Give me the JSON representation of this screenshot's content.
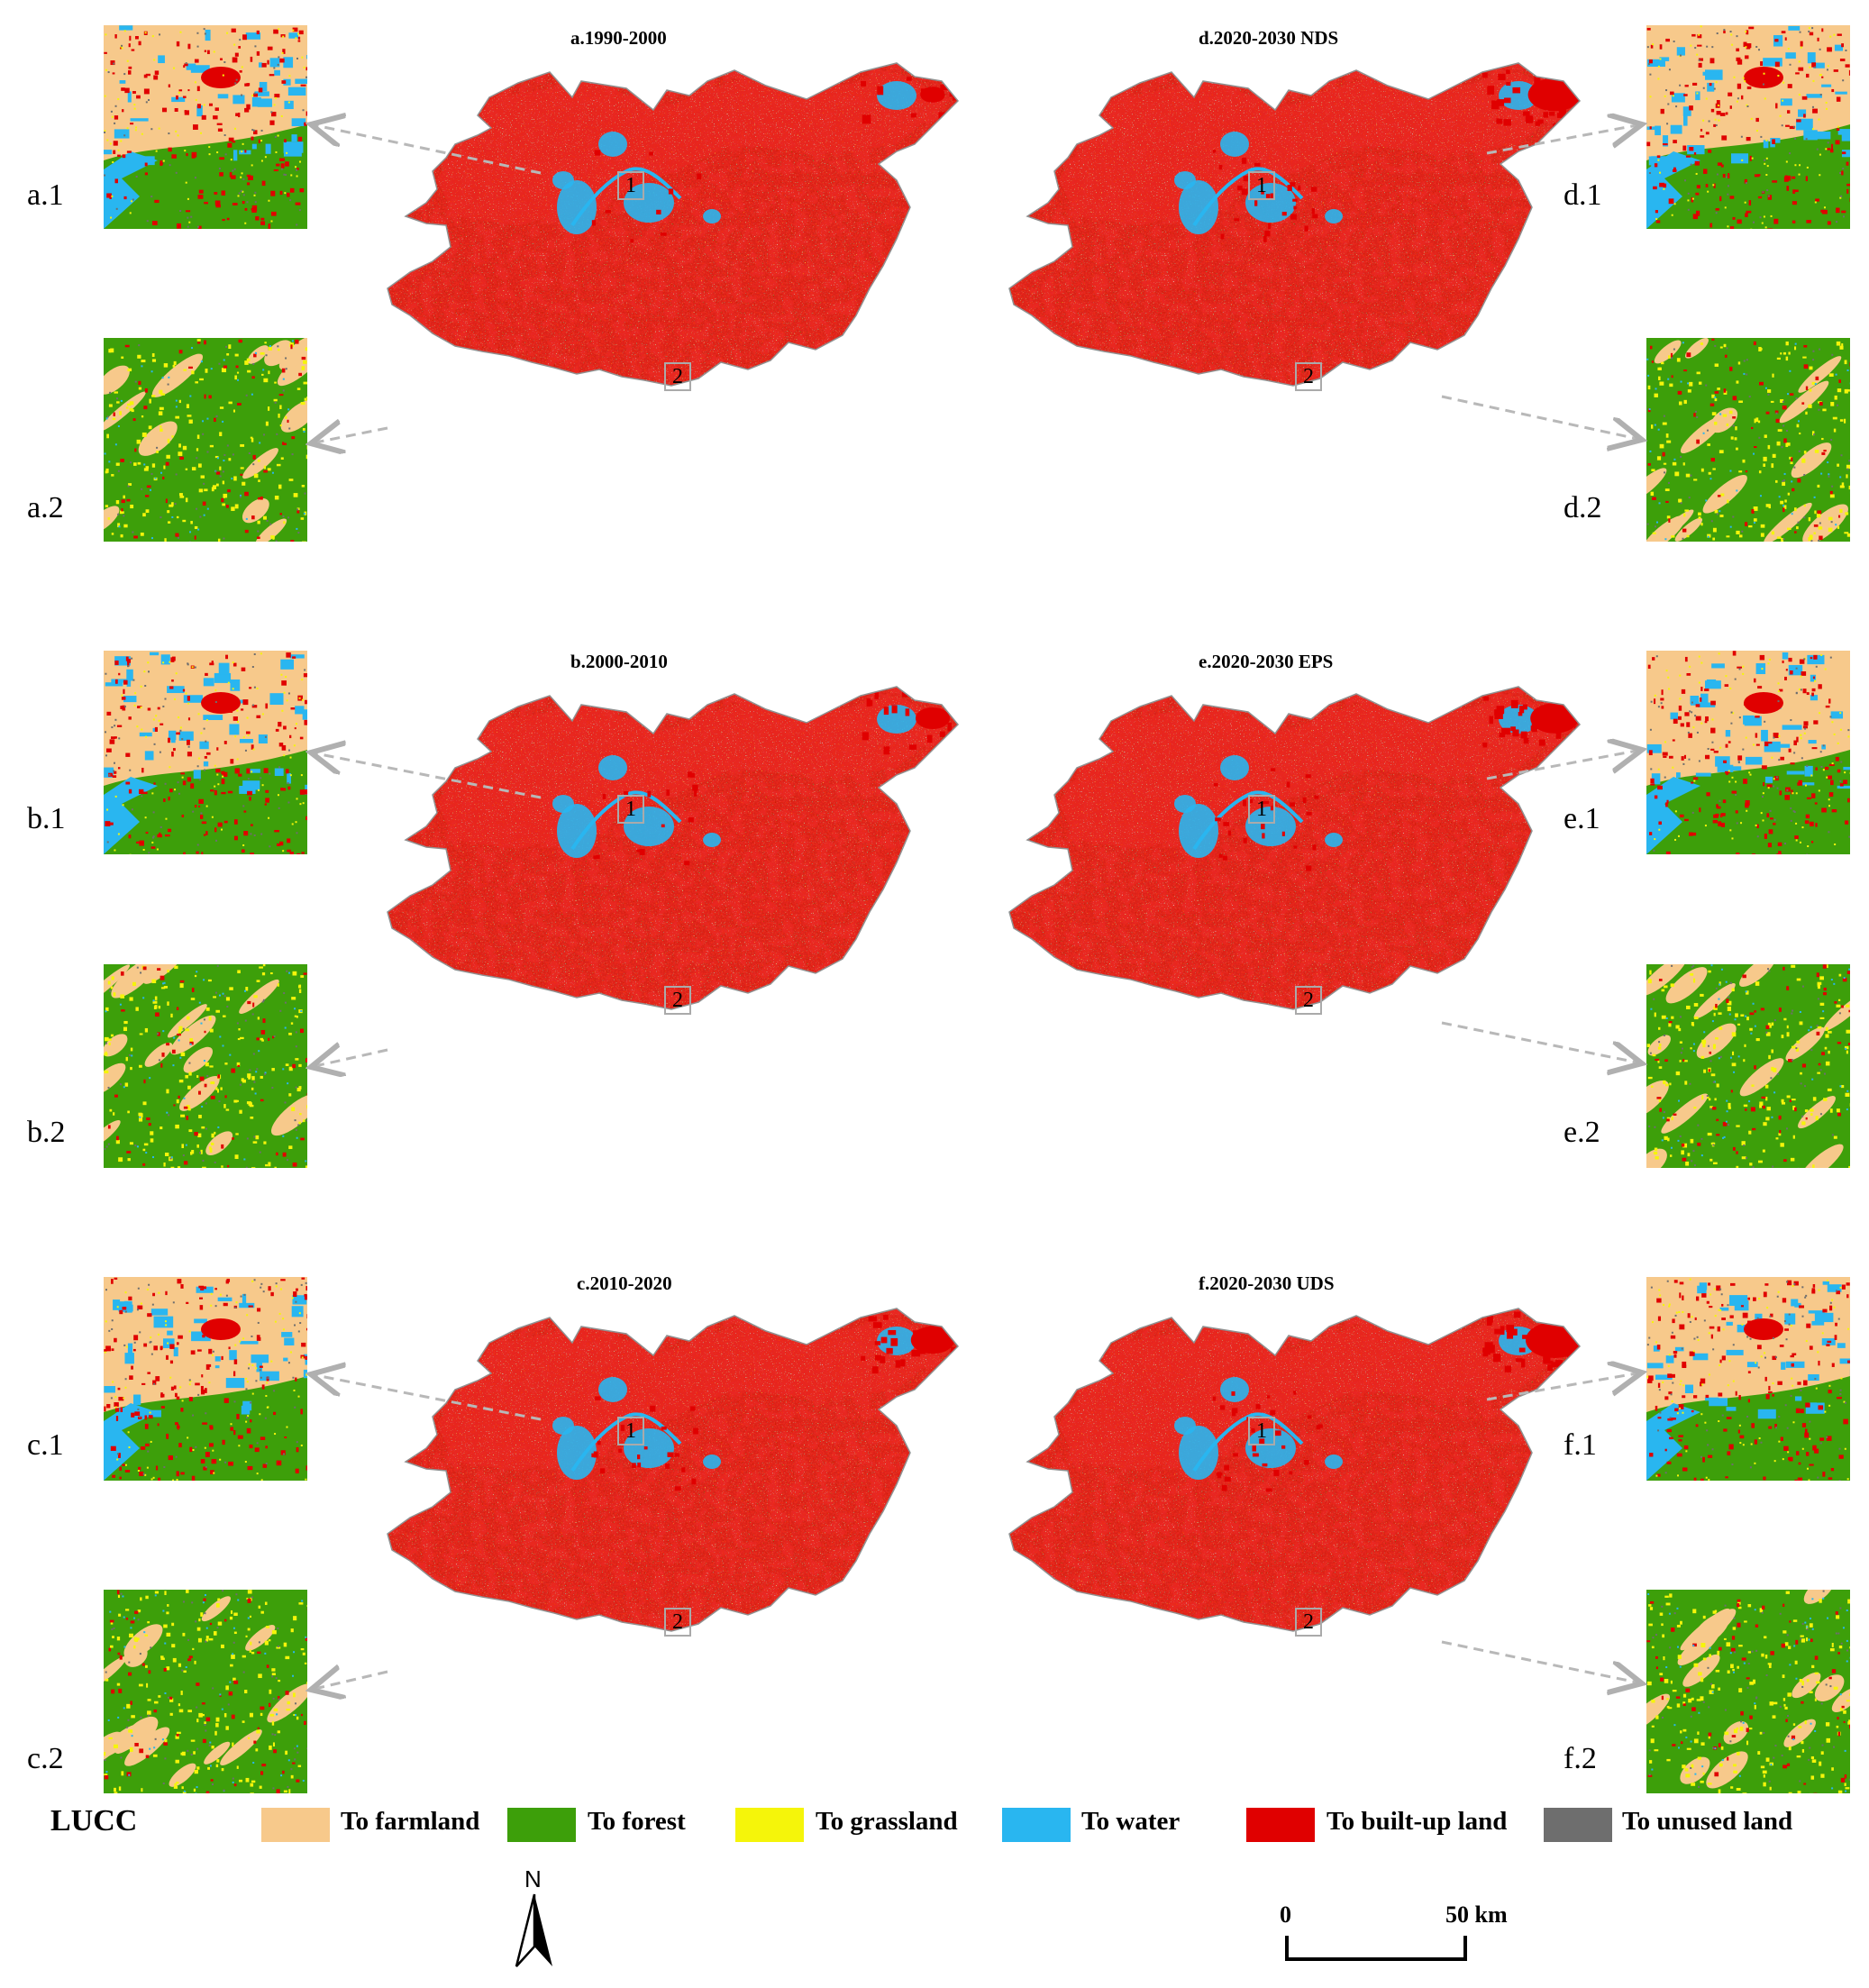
{
  "maps": [
    {
      "id": "a",
      "title": "a.1990-2000",
      "inset1": "a.1",
      "inset2": "a.2",
      "marker1": "1",
      "marker2": "2"
    },
    {
      "id": "d",
      "title": "d.2020-2030 NDS",
      "inset1": "d.1",
      "inset2": "d.2",
      "marker1": "1",
      "marker2": "2"
    },
    {
      "id": "b",
      "title": "b.2000-2010",
      "inset1": "b.1",
      "inset2": "b.2",
      "marker1": "1",
      "marker2": "2"
    },
    {
      "id": "e",
      "title": "e.2020-2030 EPS",
      "inset1": "e.1",
      "inset2": "e.2",
      "marker1": "1",
      "marker2": "2"
    },
    {
      "id": "c",
      "title": "c.2010-2020",
      "inset1": "c.1",
      "inset2": "c.2",
      "marker1": "1",
      "marker2": "2"
    },
    {
      "id": "f",
      "title": "f.2020-2030 UDS",
      "inset1": "f.1",
      "inset2": "f.2",
      "marker1": "1",
      "marker2": "2"
    }
  ],
  "legend": {
    "title": "LUCC",
    "items": [
      {
        "label": "To farmland",
        "color": "#f7c98b"
      },
      {
        "label": "To forest",
        "color": "#3d9f0a"
      },
      {
        "label": "To grassland",
        "color": "#f5f50a"
      },
      {
        "label": "To water",
        "color": "#29b6f0"
      },
      {
        "label": "To built-up land",
        "color": "#e00000"
      },
      {
        "label": "To unused land",
        "color": "#6e6e6e"
      }
    ]
  },
  "north_arrow": {
    "label": "N"
  },
  "scale_bar": {
    "start": "0",
    "end": "50 km"
  }
}
